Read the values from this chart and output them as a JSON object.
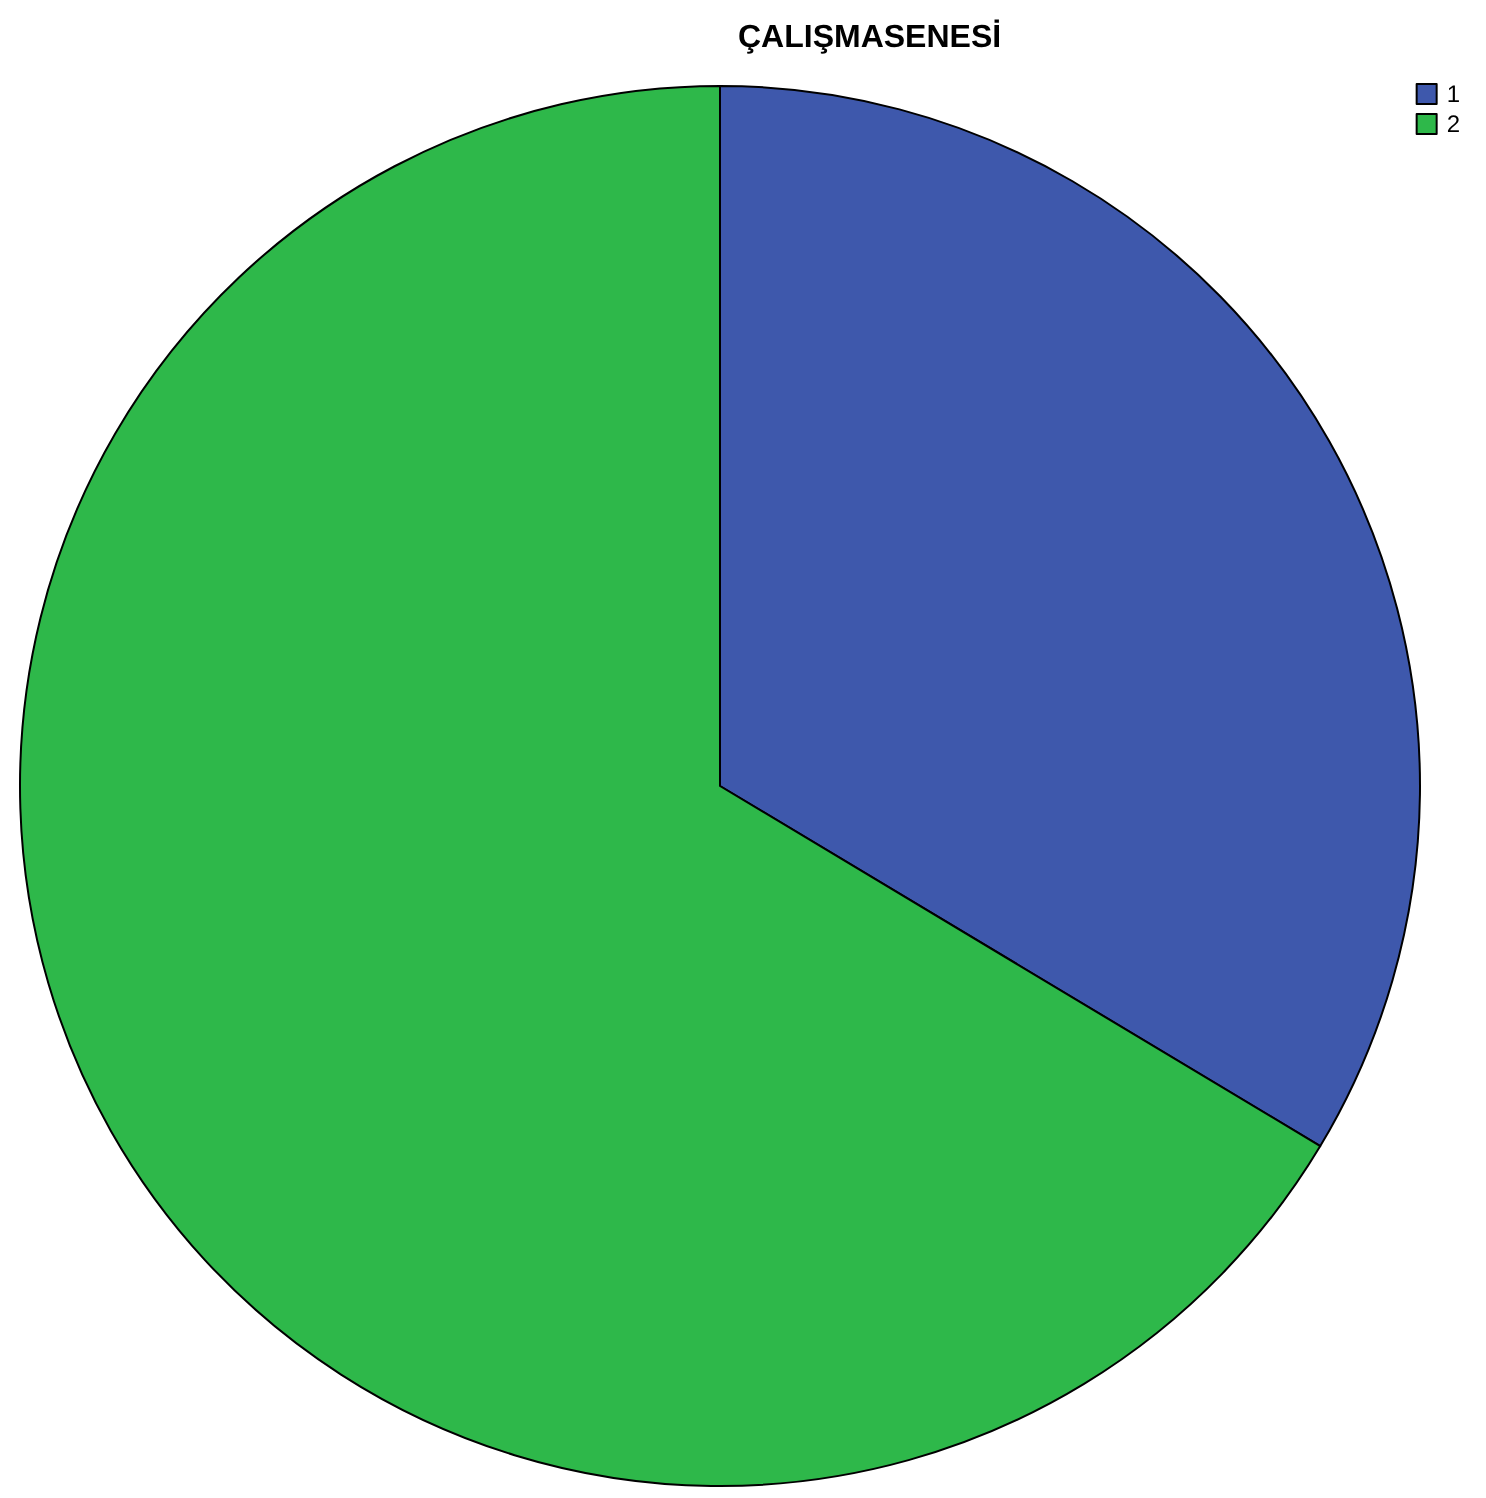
{
  "chart_data": {
    "type": "pie",
    "title": "ÇALIŞMASENESİ",
    "categories": [
      "1",
      "2"
    ],
    "values": [
      33.6,
      66.4
    ],
    "colors": [
      "#3e58ac",
      "#2eb84a"
    ],
    "legend": "top right"
  }
}
